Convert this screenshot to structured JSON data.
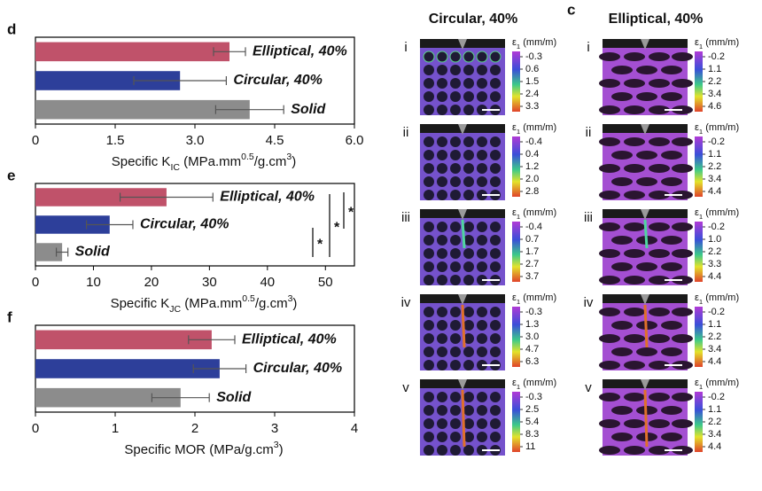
{
  "chart_data": [
    {
      "type": "bar",
      "orientation": "horizontal",
      "panel": "d",
      "categories": [
        "Elliptical, 40%",
        "Circular, 40%",
        "Solid"
      ],
      "values": [
        3.65,
        2.72,
        4.03
      ],
      "errors": [
        0.3,
        0.87,
        0.64
      ],
      "colors": [
        "#c0526a",
        "#2d3f9a",
        "#8c8c8c"
      ],
      "label_colors": [
        "#b84a63",
        "#2d3f9a",
        "#9a9a9a"
      ],
      "xlim": [
        0,
        6
      ],
      "xticks": [
        0,
        1.5,
        {
          "value": 3,
          "label": "3.0"
        },
        4.5,
        {
          "value": 6,
          "label": "6.0"
        }
      ],
      "xlabel": [
        "Specific K",
        "IC",
        " (MPa.mm",
        "0.5",
        "/g.cm",
        "3",
        ")"
      ]
    },
    {
      "type": "bar",
      "orientation": "horizontal",
      "panel": "e",
      "categories": [
        "Elliptical, 40%",
        "Circular, 40%",
        "Solid"
      ],
      "values": [
        22.6,
        12.8,
        4.6
      ],
      "errors": [
        8,
        4,
        1
      ],
      "colors": [
        "#c0526a",
        "#2d3f9a",
        "#8c8c8c"
      ],
      "label_colors": [
        "#b84a63",
        "#2d3f9a",
        "#9a9a9a"
      ],
      "xlim": [
        0,
        55
      ],
      "xticks": [
        0,
        10,
        20,
        30,
        40,
        50
      ],
      "xlabel": [
        "Specific K",
        "JC",
        " (MPa.mm",
        "0.5",
        "/g.cm",
        "3",
        ")"
      ],
      "significance": [
        "*",
        "*",
        "*"
      ]
    },
    {
      "type": "bar",
      "orientation": "horizontal",
      "panel": "f",
      "categories": [
        "Elliptical, 40%",
        "Circular, 40%",
        "Solid"
      ],
      "values": [
        2.21,
        2.31,
        1.82
      ],
      "errors": [
        0.29,
        0.33,
        0.36
      ],
      "colors": [
        "#c0526a",
        "#2d3f9a",
        "#8c8c8c"
      ],
      "label_colors": [
        "#b84a63",
        "#2d3f9a",
        "#9a9a9a"
      ],
      "xlim": [
        0,
        4
      ],
      "xticks": [
        0,
        1,
        2,
        3,
        4
      ],
      "xlabel": [
        "Specific MOR (MPa/g.cm",
        "3",
        ")"
      ]
    }
  ],
  "strain_maps": {
    "panel": "c",
    "columns": [
      {
        "title": "Circular, 40%",
        "rows": [
          {
            "label": "i",
            "colorbar_label": [
              "ε",
              "1",
              " (mm/m)"
            ],
            "ticks": [
              "-0.3",
              "0.6",
              "1.5",
              "2.4",
              "3.3"
            ]
          },
          {
            "label": "ii",
            "colorbar_label": [
              "ε",
              "1",
              " (mm/m)"
            ],
            "ticks": [
              "-0.4",
              "0.4",
              "1.2",
              "2.0",
              "2.8"
            ]
          },
          {
            "label": "iii",
            "colorbar_label": [
              "ε",
              "1",
              " (mm/m)"
            ],
            "ticks": [
              "-0.4",
              "0.7",
              "1.7",
              "2.7",
              "3.7"
            ]
          },
          {
            "label": "iv",
            "colorbar_label": [
              "ε",
              "1",
              " (mm/m)"
            ],
            "ticks": [
              "-0.3",
              "1.3",
              "3.0",
              "4.7",
              "6.3"
            ]
          },
          {
            "label": "v",
            "colorbar_label": [
              "ε",
              "1",
              " (mm/m)"
            ],
            "ticks": [
              "-0.3",
              "2.5",
              "5.4",
              "8.3",
              "11"
            ]
          }
        ]
      },
      {
        "title": "Elliptical, 40%",
        "rows": [
          {
            "label": "i",
            "colorbar_label": [
              "ε",
              "1",
              " (mm/m)"
            ],
            "ticks": [
              "-0.2",
              "1.1",
              "2.2",
              "3.4",
              "4.6"
            ]
          },
          {
            "label": "ii",
            "colorbar_label": [
              "ε",
              "1",
              " (mm/m)"
            ],
            "ticks": [
              "-0.2",
              "1.1",
              "2.2",
              "3.4",
              "4.4"
            ]
          },
          {
            "label": "iii",
            "colorbar_label": [
              "ε",
              "1",
              " (mm/m)"
            ],
            "ticks": [
              "-0.2",
              "1.0",
              "2.2",
              "3.3",
              "4.4"
            ]
          },
          {
            "label": "iv",
            "colorbar_label": [
              "ε",
              "1",
              " (mm/m)"
            ],
            "ticks": [
              "-0.2",
              "1.1",
              "2.2",
              "3.4",
              "4.4"
            ]
          },
          {
            "label": "v",
            "colorbar_label": [
              "ε",
              "1",
              " (mm/m)"
            ],
            "ticks": [
              "-0.2",
              "1.1",
              "2.2",
              "3.4",
              "4.4"
            ]
          }
        ]
      }
    ]
  }
}
